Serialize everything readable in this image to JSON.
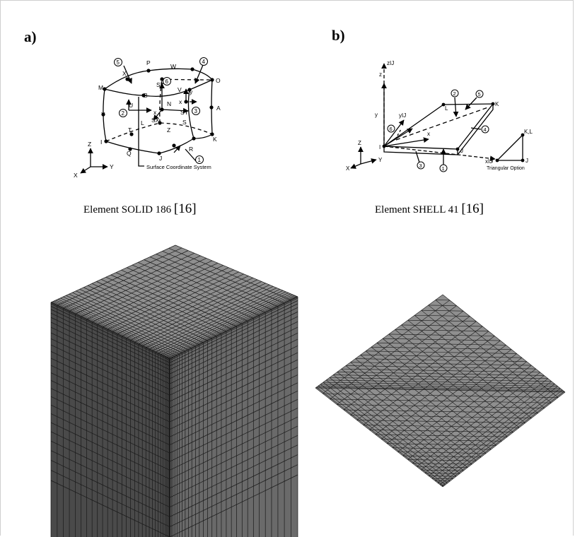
{
  "panels": {
    "a": {
      "label": "a)",
      "caption_main": "Element SOLID 186",
      "caption_ref": "[16]",
      "diagram": {
        "node_letters": [
          "P",
          "W",
          "O",
          "X",
          "M",
          "B",
          "N",
          "V",
          "Y",
          "U",
          "A",
          "L",
          "S",
          "T",
          "Z",
          "I",
          "K",
          "Q",
          "J",
          "R"
        ],
        "face_numbers": [
          "5",
          "4",
          "6",
          "2",
          "3",
          "1"
        ],
        "surface_labels": [
          "SZ",
          "SY",
          "SX",
          "x",
          "y",
          "x"
        ],
        "axis_labels": [
          "Z",
          "Y",
          "X"
        ],
        "footnote": "Surface Coordinate System"
      }
    },
    "b": {
      "label": "b)",
      "caption_main": "Element SHELL 41",
      "caption_ref": "[16]",
      "diagram": {
        "axis_labels": [
          "Z",
          "Y",
          "X"
        ],
        "local_axes": [
          "z",
          "zIJ",
          "y",
          "yIJ",
          "x",
          "xIJ"
        ],
        "node_letters": [
          "I",
          "J",
          "K",
          "L"
        ],
        "face_numbers": [
          "2",
          "5",
          "6",
          "4",
          "3",
          "1"
        ],
        "inset_labels": [
          "K,L",
          "I",
          "J"
        ],
        "inset_caption": "Triangular Option"
      }
    }
  },
  "colors": {
    "mesh_face_top": "#8f8f8f",
    "mesh_face_left": "#4a4a4a",
    "mesh_face_right": "#6a6a6a",
    "mesh_line": "#1a1a1a",
    "frame": "#cfcfcf"
  }
}
